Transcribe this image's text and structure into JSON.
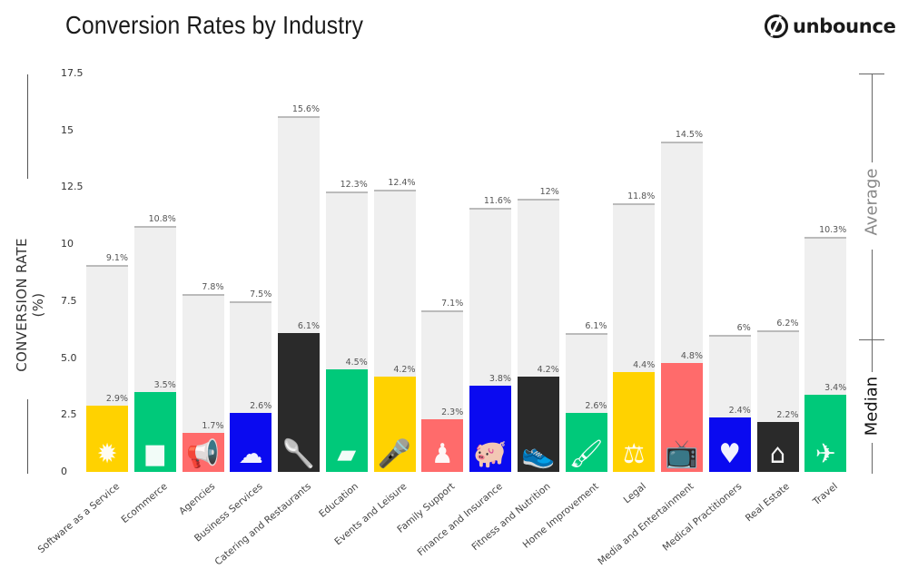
{
  "header": {
    "title": "Conversion Rates by Industry",
    "logo_text": "unbounce"
  },
  "y_axis": {
    "label": "CONVERSION RATE (%)",
    "ticks": [
      "17.5",
      "15",
      "12.5",
      "10",
      "7.5",
      "5.0",
      "2.5",
      "0"
    ]
  },
  "right_legend": {
    "average_label": "Average",
    "median_label": "Median"
  },
  "colors": {
    "yellow": "#ffd200",
    "green": "#00c97a",
    "red": "#ff6b6b",
    "blue": "#0a0af0",
    "black": "#2a2a2a",
    "average_bar": "#efefef"
  },
  "bars": [
    {
      "label": "Software as a Service",
      "average": "9.1%",
      "median": "2.9%",
      "icon": "gear-icon",
      "glyph": "✹",
      "color": "#ffd200"
    },
    {
      "label": "Ecommerce",
      "average": "10.8%",
      "median": "3.5%",
      "icon": "box-icon",
      "glyph": "■",
      "color": "#00c97a"
    },
    {
      "label": "Agencies",
      "average": "7.8%",
      "median": "1.7%",
      "icon": "megaphone-icon",
      "glyph": "📢",
      "color": "#ff6b6b"
    },
    {
      "label": "Business Services",
      "average": "7.5%",
      "median": "2.6%",
      "icon": "cloud-icon",
      "glyph": "☁",
      "color": "#0a0af0"
    },
    {
      "label": "Catering and Restaurants",
      "average": "15.6%",
      "median": "6.1%",
      "icon": "spoon-icon",
      "glyph": "🥄",
      "color": "#2a2a2a"
    },
    {
      "label": "Education",
      "average": "12.3%",
      "median": "4.5%",
      "icon": "book-icon",
      "glyph": "▰",
      "color": "#00c97a"
    },
    {
      "label": "Events and Leisure",
      "average": "12.4%",
      "median": "4.2%",
      "icon": "microphone-icon",
      "glyph": "🎤",
      "color": "#ffd200"
    },
    {
      "label": "Family Support",
      "average": "7.1%",
      "median": "2.3%",
      "icon": "person-icon",
      "glyph": "♟",
      "color": "#ff6b6b"
    },
    {
      "label": "Finance and Insurance",
      "average": "11.6%",
      "median": "3.8%",
      "icon": "piggy-bank-icon",
      "glyph": "🐖",
      "color": "#0a0af0"
    },
    {
      "label": "Fitness and Nutrition",
      "average": "12%",
      "median": "4.2%",
      "icon": "sneaker-icon",
      "glyph": "👟",
      "color": "#2a2a2a"
    },
    {
      "label": "Home Improvement",
      "average": "6.1%",
      "median": "2.6%",
      "icon": "brush-icon",
      "glyph": "🖌",
      "color": "#00c97a"
    },
    {
      "label": "Legal",
      "average": "11.8%",
      "median": "4.4%",
      "icon": "gavel-icon",
      "glyph": "⚖",
      "color": "#ffd200"
    },
    {
      "label": "Media and Entertainment",
      "average": "14.5%",
      "median": "4.8%",
      "icon": "tv-icon",
      "glyph": "📺",
      "color": "#ff6b6b"
    },
    {
      "label": "Medical Practitioners",
      "average": "6%",
      "median": "2.4%",
      "icon": "heart-icon",
      "glyph": "♥",
      "color": "#0a0af0"
    },
    {
      "label": "Real Estate",
      "average": "6.2%",
      "median": "2.2%",
      "icon": "house-icon",
      "glyph": "⌂",
      "color": "#2a2a2a"
    },
    {
      "label": "Travel",
      "average": "10.3%",
      "median": "3.4%",
      "icon": "airplane-icon",
      "glyph": "✈",
      "color": "#00c97a"
    }
  ],
  "chart_data": {
    "type": "bar",
    "title": "Conversion Rates by Industry",
    "xlabel": "",
    "ylabel": "CONVERSION RATE (%)",
    "ylim": [
      0,
      17.5
    ],
    "yticks": [
      0,
      2.5,
      5.0,
      7.5,
      10,
      12.5,
      15,
      17.5
    ],
    "grid": false,
    "legend": {
      "position": "right",
      "entries": [
        "Average",
        "Median"
      ]
    },
    "categories": [
      "Software as a Service",
      "Ecommerce",
      "Agencies",
      "Business Services",
      "Catering and Restaurants",
      "Education",
      "Events and Leisure",
      "Family Support",
      "Finance and Insurance",
      "Fitness and Nutrition",
      "Home Improvement",
      "Legal",
      "Media and Entertainment",
      "Medical Practitioners",
      "Real Estate",
      "Travel"
    ],
    "series": [
      {
        "name": "Average",
        "values": [
          9.1,
          10.8,
          7.8,
          7.5,
          15.6,
          12.3,
          12.4,
          7.1,
          11.6,
          12.0,
          6.1,
          11.8,
          14.5,
          6.0,
          6.2,
          10.3
        ]
      },
      {
        "name": "Median",
        "values": [
          2.9,
          3.5,
          1.7,
          2.6,
          6.1,
          4.5,
          4.2,
          2.3,
          3.8,
          4.2,
          2.6,
          4.4,
          4.8,
          2.4,
          2.2,
          3.4
        ]
      }
    ]
  }
}
